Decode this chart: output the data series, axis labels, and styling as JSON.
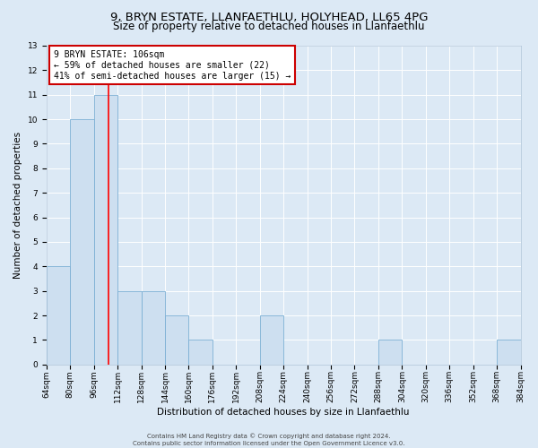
{
  "title": "9, BRYN ESTATE, LLANFAETHLU, HOLYHEAD, LL65 4PG",
  "subtitle": "Size of property relative to detached houses in Llanfaethlu",
  "xlabel": "Distribution of detached houses by size in Llanfaethlu",
  "ylabel": "Number of detached properties",
  "bins": [
    64,
    80,
    96,
    112,
    128,
    144,
    160,
    176,
    192,
    208,
    224,
    240,
    256,
    272,
    288,
    304,
    320,
    336,
    352,
    368,
    384
  ],
  "counts": [
    4,
    10,
    11,
    3,
    3,
    2,
    1,
    0,
    0,
    2,
    0,
    0,
    0,
    0,
    1,
    0,
    0,
    0,
    0,
    1
  ],
  "bar_color": "#cddff0",
  "bar_edge_color": "#7bafd4",
  "red_line_x": 106,
  "ylim": [
    0,
    13
  ],
  "yticks": [
    0,
    1,
    2,
    3,
    4,
    5,
    6,
    7,
    8,
    9,
    10,
    11,
    12,
    13
  ],
  "annotation_title": "9 BRYN ESTATE: 106sqm",
  "annotation_line1": "← 59% of detached houses are smaller (22)",
  "annotation_line2": "41% of semi-detached houses are larger (15) →",
  "annotation_box_color": "#ffffff",
  "annotation_box_edge_color": "#cc0000",
  "footer_line1": "Contains HM Land Registry data © Crown copyright and database right 2024.",
  "footer_line2": "Contains public sector information licensed under the Open Government Licence v3.0.",
  "background_color": "#dce9f5",
  "plot_background_color": "#dce9f5",
  "title_fontsize": 9.5,
  "subtitle_fontsize": 8.5,
  "ylabel_fontsize": 7.5,
  "xlabel_fontsize": 7.5,
  "tick_fontsize": 6.5,
  "annotation_fontsize": 7,
  "footer_fontsize": 5
}
